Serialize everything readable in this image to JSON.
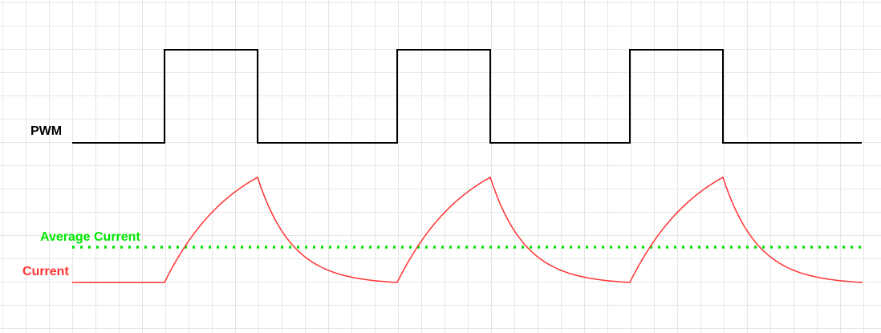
{
  "labels": {
    "pwm": "PWM",
    "average_current": "Average Current",
    "current": "Current"
  },
  "colors": {
    "pwm_signal": "#000000",
    "average_current": "#00e600",
    "current": "#ff3333",
    "grid": "#e6e6e6"
  },
  "pwm": {
    "periods": 3,
    "duty_cycle_fraction": 0.4
  }
}
